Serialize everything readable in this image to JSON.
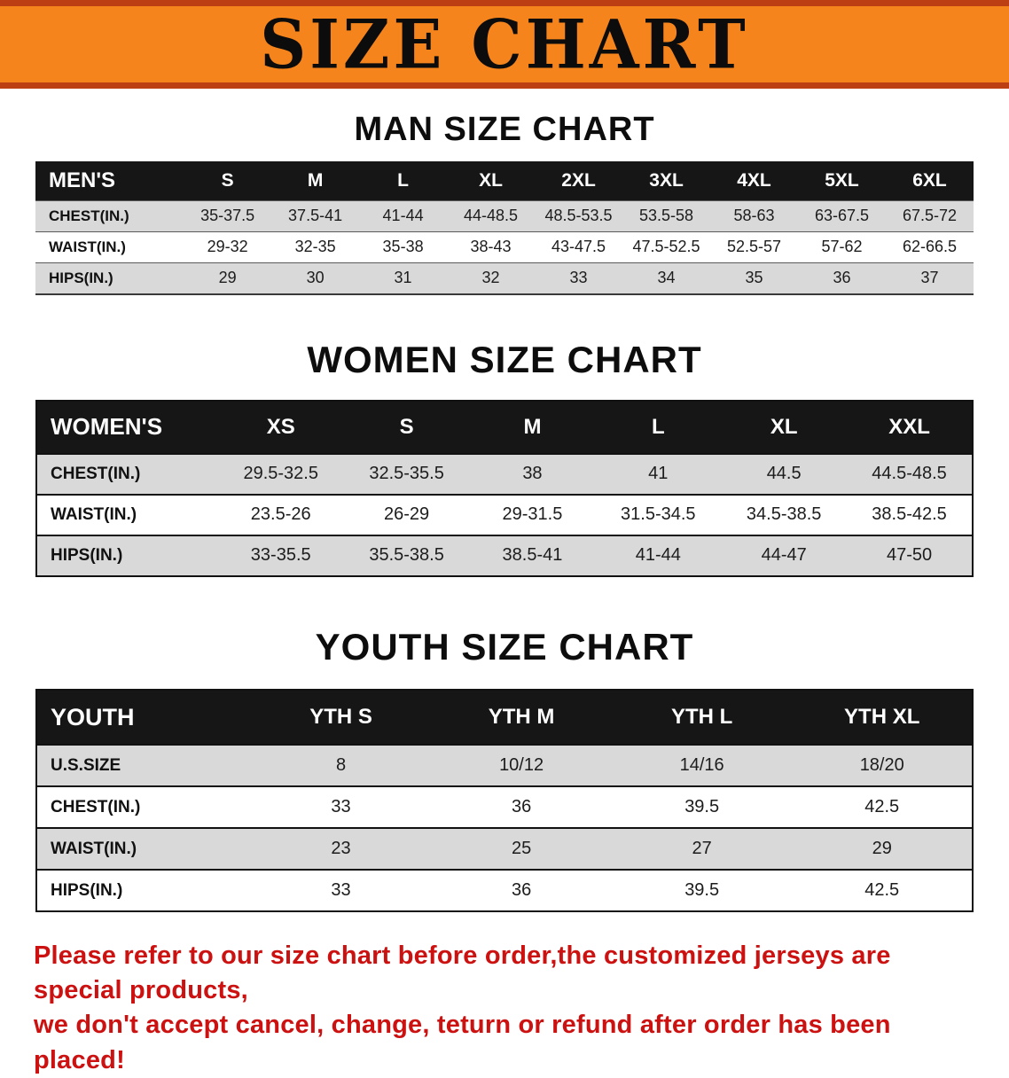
{
  "banner": {
    "title": "SIZE CHART"
  },
  "men": {
    "heading": "MAN SIZE CHART",
    "table": {
      "header": [
        "MEN'S",
        "S",
        "M",
        "L",
        "XL",
        "2XL",
        "3XL",
        "4XL",
        "5XL",
        "6XL"
      ],
      "rows": [
        [
          "CHEST(IN.)",
          "35-37.5",
          "37.5-41",
          "41-44",
          "44-48.5",
          "48.5-53.5",
          "53.5-58",
          "58-63",
          "63-67.5",
          "67.5-72"
        ],
        [
          "WAIST(IN.)",
          "29-32",
          "32-35",
          "35-38",
          "38-43",
          "43-47.5",
          "47.5-52.5",
          "52.5-57",
          "57-62",
          "62-66.5"
        ],
        [
          "HIPS(IN.)",
          "29",
          "30",
          "31",
          "32",
          "33",
          "34",
          "35",
          "36",
          "37"
        ]
      ]
    }
  },
  "women": {
    "heading": "WOMEN SIZE CHART",
    "table": {
      "header": [
        "WOMEN'S",
        "XS",
        "S",
        "M",
        "L",
        "XL",
        "XXL"
      ],
      "rows": [
        [
          "CHEST(IN.)",
          "29.5-32.5",
          "32.5-35.5",
          "38",
          "41",
          "44.5",
          "44.5-48.5"
        ],
        [
          "WAIST(IN.)",
          "23.5-26",
          "26-29",
          "29-31.5",
          "31.5-34.5",
          "34.5-38.5",
          "38.5-42.5"
        ],
        [
          "HIPS(IN.)",
          "33-35.5",
          "35.5-38.5",
          "38.5-41",
          "41-44",
          "44-47",
          "47-50"
        ]
      ]
    }
  },
  "youth": {
    "heading": "YOUTH SIZE CHART",
    "table": {
      "header": [
        "YOUTH",
        "YTH S",
        "YTH M",
        "YTH L",
        "YTH XL"
      ],
      "rows": [
        [
          "U.S.SIZE",
          "8",
          "10/12",
          "14/16",
          "18/20"
        ],
        [
          "CHEST(IN.)",
          "33",
          "36",
          "39.5",
          "42.5"
        ],
        [
          "WAIST(IN.)",
          "23",
          "25",
          "27",
          "29"
        ],
        [
          "HIPS(IN.)",
          "33",
          "36",
          "39.5",
          "42.5"
        ]
      ]
    }
  },
  "disclaimer": {
    "line1": "Please refer to our size chart before order,the customized jerseys are special products,",
    "line2": "we don't accept cancel, change, teturn or refund after order has been placed!"
  },
  "colors": {
    "banner_orange": "#F5841D",
    "banner_edge": "#BC3F14",
    "table_header_black": "#161616",
    "row_stripe_gray": "#D9D9D9",
    "disclaimer_red": "#CC1111"
  }
}
